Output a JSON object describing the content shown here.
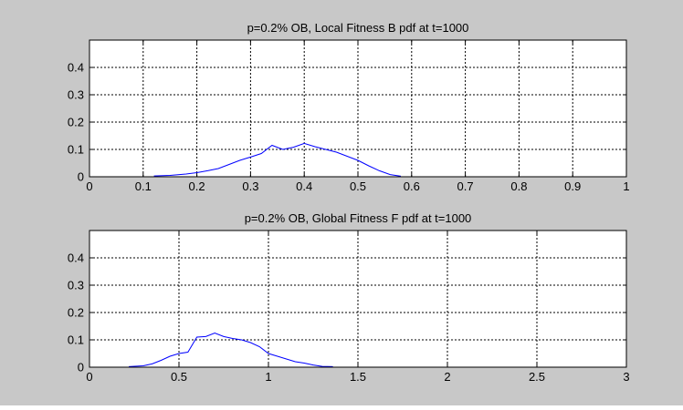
{
  "figure": {
    "background": "#c8c8c8"
  },
  "chart_data": [
    {
      "type": "line",
      "title": "p=0.2% OB,  Local Fitness B pdf at t=1000",
      "xlim": [
        0,
        1
      ],
      "ylim": [
        0,
        0.5
      ],
      "xticks": [
        0,
        0.1,
        0.2,
        0.3,
        0.4,
        0.5,
        0.6,
        0.7,
        0.8,
        0.9,
        1
      ],
      "xtick_labels": [
        "0",
        "0.1",
        "0.2",
        "0.3",
        "0.4",
        "0.5",
        "0.6",
        "0.7",
        "0.8",
        "0.9",
        "1"
      ],
      "yticks": [
        0,
        0.1,
        0.2,
        0.3,
        0.4
      ],
      "ytick_labels": [
        "0",
        "0.1",
        "0.2",
        "0.3",
        "0.4"
      ],
      "grid": true,
      "line_color": "#0000ff",
      "series": [
        {
          "x": [
            0.12,
            0.15,
            0.18,
            0.2,
            0.22,
            0.24,
            0.26,
            0.28,
            0.3,
            0.32,
            0.34,
            0.36,
            0.38,
            0.4,
            0.42,
            0.44,
            0.46,
            0.48,
            0.5,
            0.52,
            0.54,
            0.56,
            0.58
          ],
          "y": [
            0.003,
            0.005,
            0.01,
            0.015,
            0.022,
            0.03,
            0.045,
            0.06,
            0.072,
            0.085,
            0.115,
            0.1,
            0.108,
            0.122,
            0.11,
            0.1,
            0.09,
            0.075,
            0.06,
            0.04,
            0.022,
            0.008,
            0.002
          ]
        }
      ]
    },
    {
      "type": "line",
      "title": "p=0.2% OB,  Global Fitness F pdf at t=1000",
      "xlim": [
        0,
        3
      ],
      "ylim": [
        0,
        0.5
      ],
      "xticks": [
        0,
        0.5,
        1,
        1.5,
        2,
        2.5,
        3
      ],
      "xtick_labels": [
        "0",
        "0.5",
        "1",
        "1.5",
        "2",
        "2.5",
        "3"
      ],
      "yticks": [
        0,
        0.1,
        0.2,
        0.3,
        0.4
      ],
      "ytick_labels": [
        "0",
        "0.1",
        "0.2",
        "0.3",
        "0.4"
      ],
      "grid": true,
      "line_color": "#0000ff",
      "series": [
        {
          "x": [
            0.22,
            0.3,
            0.35,
            0.4,
            0.45,
            0.5,
            0.55,
            0.6,
            0.65,
            0.7,
            0.75,
            0.8,
            0.85,
            0.9,
            0.95,
            1.0,
            1.05,
            1.1,
            1.15,
            1.2,
            1.25,
            1.3,
            1.36
          ],
          "y": [
            0.002,
            0.005,
            0.012,
            0.025,
            0.04,
            0.05,
            0.055,
            0.11,
            0.112,
            0.125,
            0.112,
            0.105,
            0.1,
            0.09,
            0.075,
            0.05,
            0.04,
            0.03,
            0.02,
            0.015,
            0.008,
            0.003,
            0.002
          ]
        }
      ]
    }
  ]
}
